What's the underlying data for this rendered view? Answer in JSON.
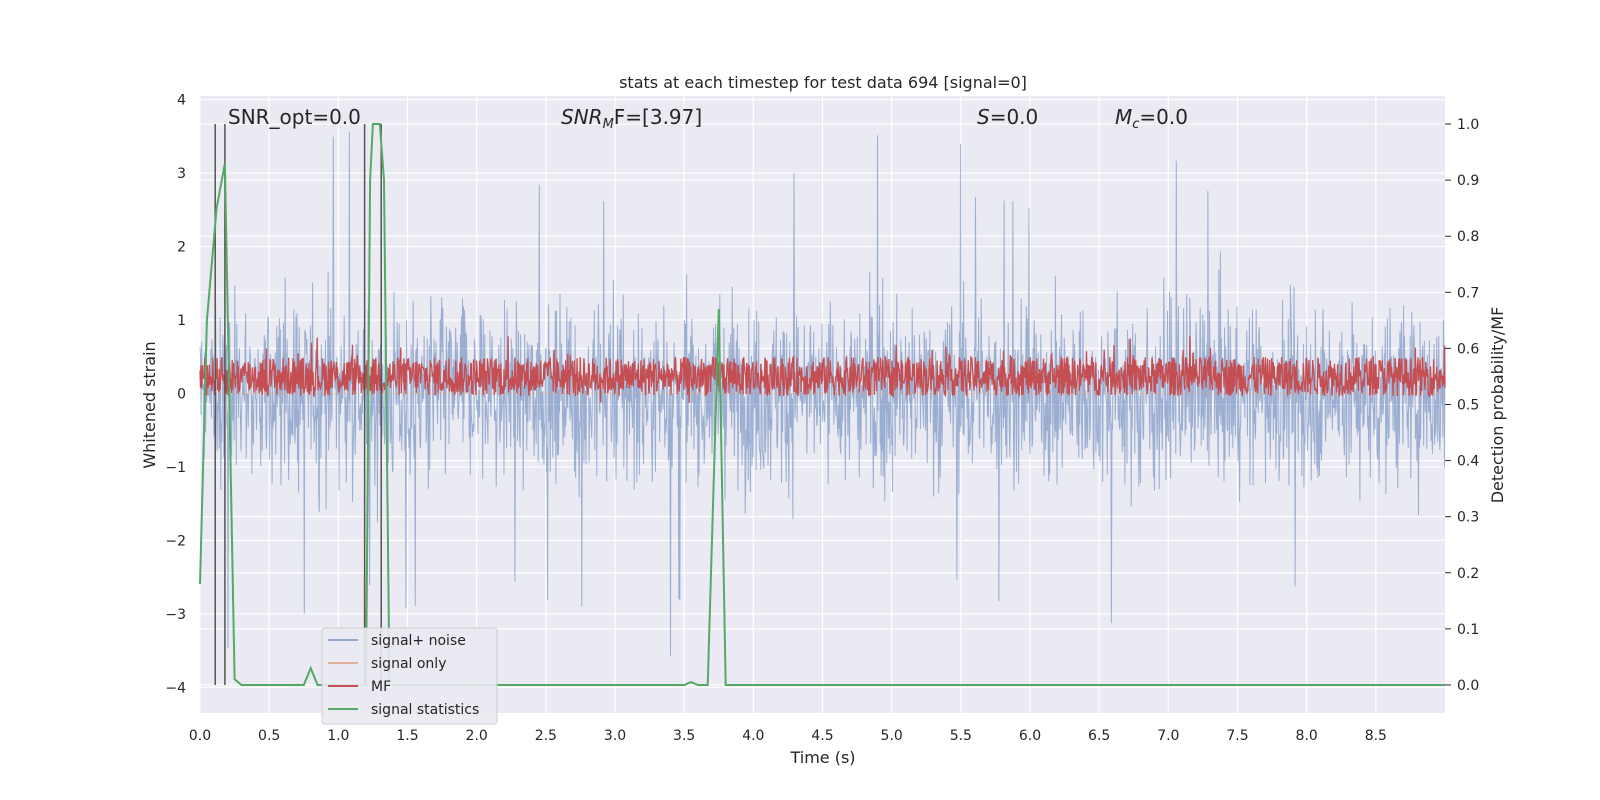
{
  "chart_data": {
    "type": "line",
    "title": "stats at each timestep for test data 694 [signal=0]",
    "xlabel": "Time (s)",
    "ylabel_left": "Whitened strain",
    "ylabel_right": "Detection probability/MF",
    "xlim": [
      0.0,
      9.0
    ],
    "ylim_left": [
      -4.35,
      4.05
    ],
    "ylim_right": [
      -0.05,
      1.05
    ],
    "x_ticks": [
      "0.0",
      "0.5",
      "1.0",
      "1.5",
      "2.0",
      "2.5",
      "3.0",
      "3.5",
      "4.0",
      "4.5",
      "5.0",
      "5.5",
      "6.0",
      "6.5",
      "7.0",
      "7.5",
      "8.0",
      "8.5"
    ],
    "y_ticks_left": [
      "4",
      "3",
      "2",
      "1",
      "0",
      "−1",
      "−2",
      "−3",
      "−4"
    ],
    "y_ticks_right": [
      "1.0",
      "0.9",
      "0.8",
      "0.7",
      "0.6",
      "0.5",
      "0.4",
      "0.3",
      "0.2",
      "0.1",
      "0.0"
    ],
    "grid": true,
    "legend_position": "lower-left",
    "annotations": {
      "snr_opt": "SNR_opt=0.0",
      "snr_mf_main": "SNR",
      "snr_mf_sub": "M",
      "snr_mf_rest": "F=[3.97]",
      "s_sym": "S",
      "s_val": "=0.0",
      "mc_sym": "M",
      "mc_sub": "c",
      "mc_val": "=0.0"
    },
    "series": [
      {
        "name": "signal+ noise",
        "color": "#4c72b0",
        "axis": "left",
        "description_level": "noise band approx ±2 with peaks to +3.7 and -4.0",
        "approx_envelope": {
          "upper": 2.0,
          "lower": -2.0,
          "max": 3.7,
          "min": -4.0
        }
      },
      {
        "name": "signal only",
        "color": "#dd8452",
        "axis": "left",
        "values_constant": 0.0
      },
      {
        "name": "MF",
        "color": "#c44e52",
        "axis": "right",
        "approx_band": [
          0.5,
          0.6
        ]
      },
      {
        "name": "signal statistics",
        "color": "#55a868",
        "axis": "right",
        "x": [
          0.0,
          0.05,
          0.12,
          0.18,
          0.25,
          0.3,
          0.75,
          0.8,
          0.85,
          1.2,
          1.23,
          1.25,
          1.3,
          1.33,
          1.37,
          3.5,
          3.55,
          3.6,
          3.67,
          3.75,
          3.8,
          3.85,
          9.0
        ],
        "y": [
          0.18,
          0.65,
          0.85,
          0.93,
          0.01,
          0.0,
          0.0,
          0.03,
          0.0,
          0.0,
          0.9,
          1.0,
          1.0,
          0.9,
          0.0,
          0.0,
          0.005,
          0.0,
          0.0,
          0.67,
          0.0,
          0.0,
          0.0
        ]
      }
    ],
    "vertical_lines_x": [
      0.11,
      0.18,
      1.19,
      1.31
    ],
    "vertical_lines_color": "#555555"
  },
  "legend": {
    "items": [
      {
        "label": "signal+ noise",
        "color": "#4c72b0"
      },
      {
        "label": "signal only",
        "color": "#dd8452"
      },
      {
        "label": "MF",
        "color": "#c44e52"
      },
      {
        "label": "signal statistics",
        "color": "#55a868"
      }
    ]
  },
  "style": {
    "plot_background": "#eaeaf2",
    "grid_color": "#ffffff"
  }
}
